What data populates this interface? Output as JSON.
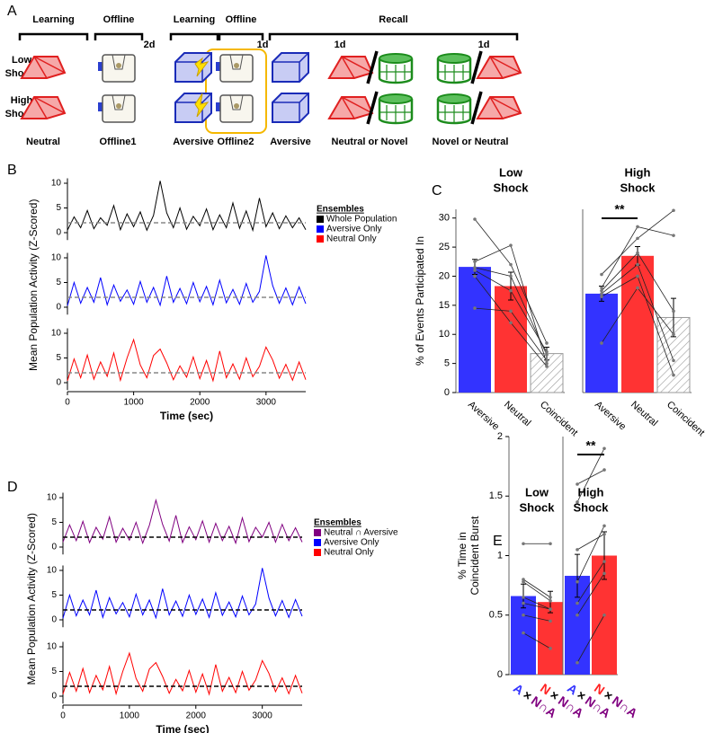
{
  "panel_a": {
    "label": "A",
    "phases": [
      "Learning",
      "Offline",
      "Learning",
      "Offline",
      "Recall"
    ],
    "intervals": [
      "2d",
      "1d",
      "1d",
      "1d"
    ],
    "rows": [
      [
        "Low",
        "Shock:"
      ],
      [
        "High",
        "Shock:"
      ]
    ],
    "captions": [
      "Neutral",
      "Offline1",
      "Aversive",
      "Offline2",
      "Aversive",
      "Neutral or Novel",
      "Novel or Neutral"
    ]
  },
  "chart_data": [
    {
      "type": "line",
      "panel": "B",
      "ylabel": "Mean Population Activity (Z-Scored)",
      "xlabel": "Time (sec)",
      "xlim": [
        0,
        3600
      ],
      "xticks": [
        0,
        1000,
        2000,
        3000
      ],
      "legend_title": "Ensembles",
      "x": [
        0,
        100,
        200,
        300,
        400,
        500,
        600,
        700,
        800,
        900,
        1000,
        1100,
        1200,
        1300,
        1400,
        1500,
        1600,
        1700,
        1800,
        1900,
        2000,
        2100,
        2200,
        2300,
        2400,
        2500,
        2600,
        2700,
        2800,
        2900,
        3000,
        3100,
        3200,
        3300,
        3400,
        3500,
        3600
      ],
      "subplots": [
        {
          "ylim": [
            -1.5,
            11
          ],
          "yticks": [
            0,
            5,
            10
          ],
          "threshold": 2,
          "threshold_color": "#888888",
          "series": [
            {
              "name": "Whole Population",
              "color": "#000000",
              "values": [
                0.5,
                3.2,
                1,
                4.5,
                0.8,
                3,
                1.5,
                5.5,
                0.6,
                3.8,
                1.2,
                4.2,
                0.5,
                3.5,
                10.5,
                4,
                1,
                5,
                0.7,
                3.3,
                1.4,
                4.8,
                0.6,
                3.6,
                1,
                6,
                0.9,
                4.4,
                0.5,
                7,
                1.2,
                4,
                0.8,
                3.4,
                1,
                3,
                0.6
              ]
            }
          ]
        },
        {
          "ylim": [
            -1.5,
            11
          ],
          "yticks": [
            0,
            5,
            10
          ],
          "threshold": 2,
          "threshold_color": "#888888",
          "series": [
            {
              "name": "Aversive Only",
              "color": "#0000ff",
              "values": [
                0.3,
                5,
                0.8,
                4,
                1,
                6,
                0.5,
                4.5,
                1.2,
                3.5,
                0.6,
                5.2,
                1,
                4,
                0.4,
                6.3,
                1,
                3.8,
                0.7,
                5,
                1.1,
                4.2,
                0.5,
                5.5,
                0.9,
                3.6,
                0.6,
                4.8,
                1,
                3.2,
                10.5,
                4.4,
                0.8,
                3.9,
                0.5,
                4.1,
                0.7
              ]
            }
          ]
        },
        {
          "ylim": [
            -1.5,
            11
          ],
          "yticks": [
            0,
            5,
            10
          ],
          "threshold": 2,
          "threshold_color": "#888888",
          "series": [
            {
              "name": "Neutral Only",
              "color": "#ff0000",
              "values": [
                0.4,
                4.8,
                1,
                5.6,
                0.7,
                4.2,
                1.3,
                6,
                0.5,
                5,
                8.7,
                3.6,
                1,
                5.5,
                6.8,
                4,
                0.6,
                3.4,
                1.1,
                5.2,
                0.8,
                4.5,
                0.4,
                6.4,
                1,
                3.8,
                0.7,
                5,
                1.2,
                3.3,
                7.2,
                4.6,
                0.9,
                3.7,
                0.5,
                4.2,
                0.6
              ]
            }
          ]
        }
      ]
    },
    {
      "type": "bar",
      "panel": "C",
      "ylabel": "% of Events Participated In",
      "ylim": [
        0,
        31.5
      ],
      "yticks": [
        0,
        5,
        10,
        15,
        20,
        25,
        30
      ],
      "groups": [
        {
          "title": [
            "Low",
            "Shock"
          ],
          "categories": [
            "Aversive",
            "Neutral",
            "Coincident"
          ],
          "colors": [
            "#3333ff",
            "#ff3333",
            "#ffffff"
          ],
          "hatch": [
            false,
            false,
            true
          ],
          "values": [
            21.6,
            18.3,
            6.7
          ],
          "errors": [
            1.3,
            2.4,
            1.1
          ],
          "subjects": [
            [
              29.8,
              22,
              8.5
            ],
            [
              22.5,
              25.3,
              5
            ],
            [
              21.5,
              20,
              6.5
            ],
            [
              21,
              17.5,
              7
            ],
            [
              20,
              12,
              4.5
            ],
            [
              14.5,
              14,
              5.5
            ]
          ]
        },
        {
          "title": [
            "High",
            "Shock"
          ],
          "categories": [
            "Aversive",
            "Neutral",
            "Coincident"
          ],
          "colors": [
            "#3333ff",
            "#ff3333",
            "#ffffff"
          ],
          "hatch": [
            false,
            false,
            true
          ],
          "values": [
            17,
            23.5,
            12.9
          ],
          "errors": [
            1.3,
            1.6,
            3.3
          ],
          "significance": "**",
          "subjects": [
            [
              20.3,
              26.5,
              31.3
            ],
            [
              18,
              28.5,
              27
            ],
            [
              17.5,
              24,
              14
            ],
            [
              17,
              22,
              5.5
            ],
            [
              16.5,
              20,
              3
            ],
            [
              8.5,
              18,
              10
            ]
          ]
        }
      ]
    },
    {
      "type": "line",
      "panel": "D",
      "ylabel": "Mean Population Activity (Z-Scored)",
      "xlabel": "Time (sec)",
      "xlim": [
        0,
        3600
      ],
      "xticks": [
        0,
        1000,
        2000,
        3000
      ],
      "legend_title": "Ensembles",
      "x": [
        0,
        100,
        200,
        300,
        400,
        500,
        600,
        700,
        800,
        900,
        1000,
        1100,
        1200,
        1300,
        1400,
        1500,
        1600,
        1700,
        1800,
        1900,
        2000,
        2100,
        2200,
        2300,
        2400,
        2500,
        2600,
        2700,
        2800,
        2900,
        3000,
        3100,
        3200,
        3300,
        3400,
        3500,
        3600
      ],
      "subplots": [
        {
          "ylim": [
            -1.5,
            11
          ],
          "yticks": [
            0,
            5,
            10
          ],
          "threshold": 2,
          "threshold_color": "#000000",
          "series": [
            {
              "name": "Neutral ∩ Aversive",
              "color": "#800080",
              "values": [
                1,
                4.5,
                1.3,
                5.2,
                0.9,
                4,
                1.6,
                6.1,
                1,
                3.8,
                1.4,
                5,
                0.8,
                4.4,
                9.5,
                4.6,
                1.2,
                6.4,
                0.9,
                4.1,
                1.5,
                5.3,
                1,
                4.8,
                1.3,
                4.2,
                0.8,
                5.9,
                1.1,
                4,
                2,
                5,
                1,
                4.6,
                1.3,
                3.9,
                1
              ]
            }
          ]
        },
        {
          "ylim": [
            -1.5,
            11
          ],
          "yticks": [
            0,
            5,
            10
          ],
          "threshold": 2,
          "threshold_color": "#000000",
          "series": [
            {
              "name": "Aversive Only",
              "color": "#0000ff",
              "values": [
                0.3,
                5,
                0.8,
                4,
                1,
                6,
                0.5,
                4.5,
                1.2,
                3.5,
                0.6,
                5.2,
                1,
                4,
                0.4,
                6.3,
                1,
                3.8,
                0.7,
                5,
                1.1,
                4.2,
                0.5,
                5.5,
                0.9,
                3.6,
                0.6,
                4.8,
                1,
                3.2,
                10.5,
                4.4,
                0.8,
                3.9,
                0.5,
                4.1,
                0.7
              ]
            }
          ]
        },
        {
          "ylim": [
            -1.5,
            11
          ],
          "yticks": [
            0,
            5,
            10
          ],
          "threshold": 2,
          "threshold_color": "#000000",
          "series": [
            {
              "name": "Neutral Only",
              "color": "#ff0000",
              "values": [
                0.4,
                4.8,
                1,
                5.6,
                0.7,
                4.2,
                1.3,
                6,
                0.5,
                5,
                8.7,
                3.6,
                1,
                5.5,
                6.8,
                4,
                0.6,
                3.4,
                1.1,
                5.2,
                0.8,
                4.5,
                0.4,
                6.4,
                1,
                3.8,
                0.7,
                5,
                1.2,
                3.3,
                7.2,
                4.6,
                0.9,
                3.7,
                0.5,
                4.2,
                0.6
              ]
            }
          ]
        }
      ]
    },
    {
      "type": "bar",
      "panel": "E",
      "ylabel": [
        "% Time in",
        "Coincident Burst"
      ],
      "ylim": [
        0,
        2
      ],
      "yticks": [
        0,
        0.5,
        1,
        1.5,
        2
      ],
      "groups": [
        {
          "title": [
            "Low",
            "Shock"
          ],
          "categories": [
            [
              {
                "text": "A",
                "color": "#3333ff"
              },
              {
                "text": "×",
                "color": "#000000"
              },
              {
                "text": "N∩A",
                "color": "#800080"
              }
            ],
            [
              {
                "text": "N",
                "color": "#ff2222"
              },
              {
                "text": "×",
                "color": "#000000"
              },
              {
                "text": "N∩A",
                "color": "#800080"
              }
            ]
          ],
          "colors": [
            "#3333ff",
            "#ff3333"
          ],
          "hatch": [
            false,
            false
          ],
          "values": [
            0.66,
            0.61
          ],
          "errors": [
            0.1,
            0.09
          ],
          "subjects": [
            [
              1.1,
              1.1
            ],
            [
              0.8,
              0.65
            ],
            [
              0.78,
              0.62
            ],
            [
              0.65,
              0.55
            ],
            [
              0.6,
              0.55
            ],
            [
              0.5,
              0.45
            ],
            [
              0.35,
              0.22
            ]
          ]
        },
        {
          "title": [
            "High",
            "Shock"
          ],
          "categories": [
            [
              {
                "text": "A",
                "color": "#3333ff"
              },
              {
                "text": "×",
                "color": "#000000"
              },
              {
                "text": "N∩A",
                "color": "#800080"
              }
            ],
            [
              {
                "text": "N",
                "color": "#ff2222"
              },
              {
                "text": "×",
                "color": "#000000"
              },
              {
                "text": "N∩A",
                "color": "#800080"
              }
            ]
          ],
          "colors": [
            "#3333ff",
            "#ff3333"
          ],
          "hatch": [
            false,
            false
          ],
          "values": [
            0.83,
            1
          ],
          "errors": [
            0.18,
            0.2
          ],
          "significance": "**",
          "subjects": [
            [
              1.6,
              1.72
            ],
            [
              1.45,
              1.9
            ],
            [
              1.05,
              1.18
            ],
            [
              0.78,
              1.25
            ],
            [
              0.6,
              0.95
            ],
            [
              0.5,
              0.85
            ],
            [
              0.1,
              0.5
            ]
          ]
        }
      ]
    }
  ]
}
